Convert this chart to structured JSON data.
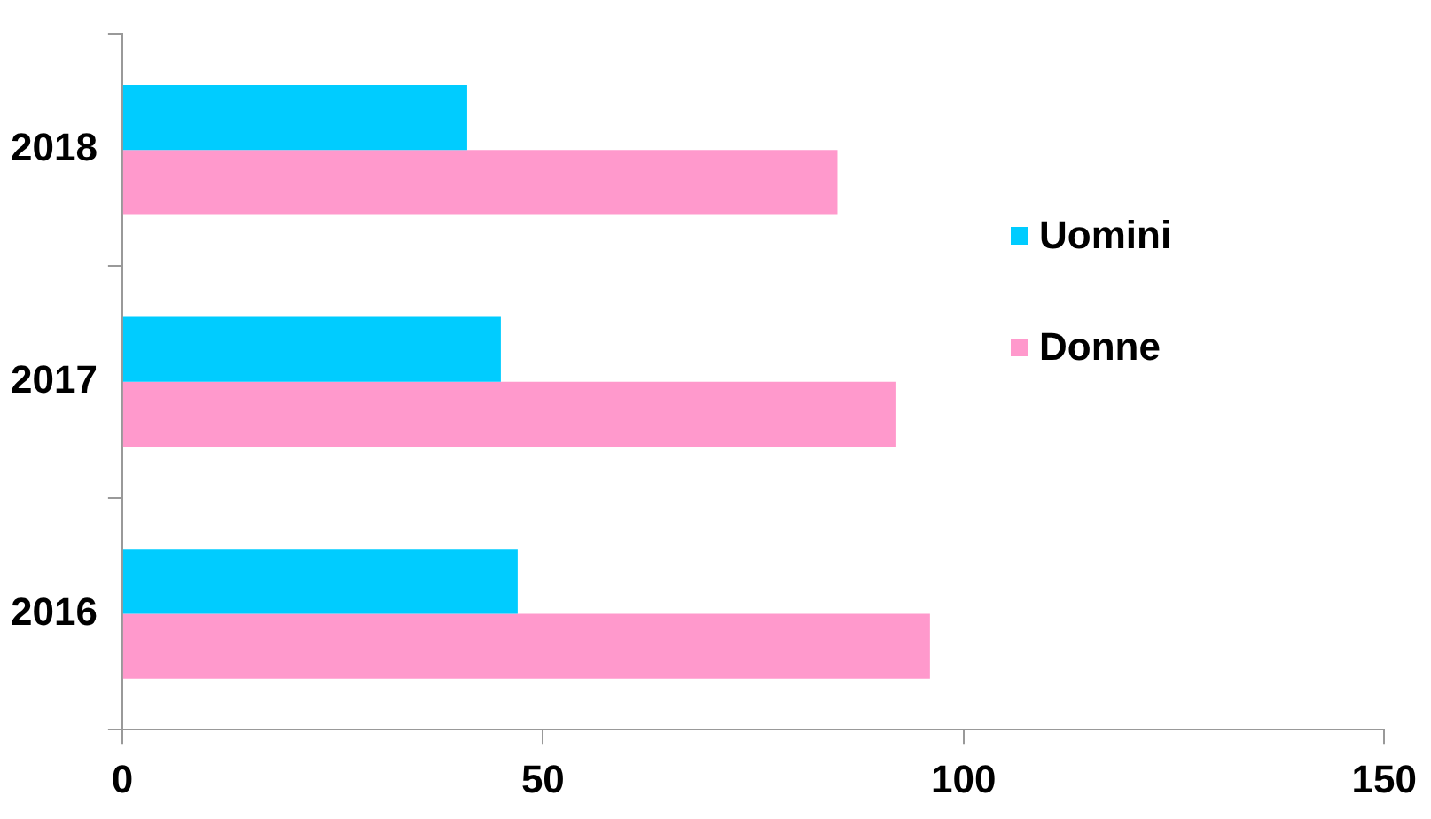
{
  "chart_data": {
    "type": "bar",
    "orientation": "horizontal",
    "categories": [
      "2018",
      "2017",
      "2016"
    ],
    "series": [
      {
        "name": "Uomini",
        "color": "#00ccff",
        "values": [
          41,
          45,
          47
        ]
      },
      {
        "name": "Donne",
        "color": "#ff99cc",
        "values": [
          85,
          92,
          96
        ]
      }
    ],
    "xlim": [
      0,
      150
    ],
    "xticks": [
      0,
      50,
      100,
      150
    ],
    "grid": false,
    "legend": "right"
  }
}
